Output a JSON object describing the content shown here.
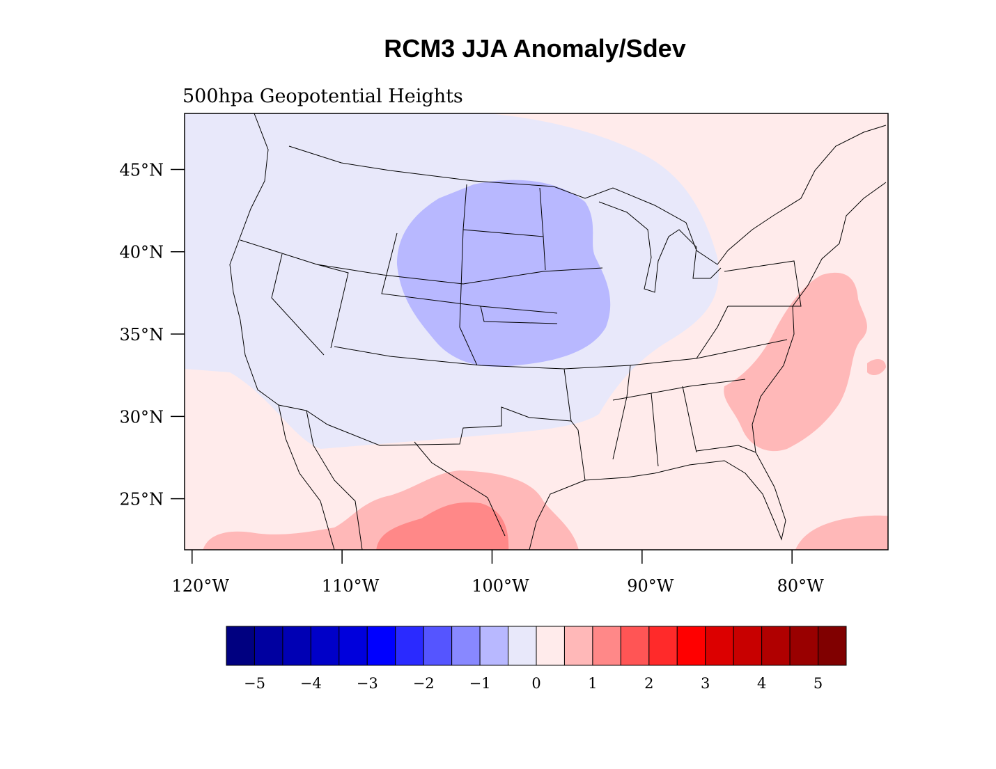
{
  "chart_data": {
    "type": "map",
    "title": "RCM3 JJA Anomaly/Sdev",
    "subtitle": "500hpa Geopotential Heights",
    "xlim": [
      -120.5,
      -73.6
    ],
    "ylim": [
      21.9,
      48.4
    ],
    "xticks": [
      {
        "value": -120,
        "label": "120°W"
      },
      {
        "value": -110,
        "label": "110°W"
      },
      {
        "value": -100,
        "label": "100°W"
      },
      {
        "value": -90,
        "label": "90°W"
      },
      {
        "value": -80,
        "label": "80°W"
      }
    ],
    "yticks": [
      {
        "value": 45,
        "label": "45°N"
      },
      {
        "value": 40,
        "label": "40°N"
      },
      {
        "value": 35,
        "label": "35°N"
      },
      {
        "value": 30,
        "label": "30°N"
      },
      {
        "value": 25,
        "label": "25°N"
      }
    ],
    "colorbar": {
      "lim": [
        -5.5,
        5.5
      ],
      "colors": [
        "#000080",
        "#0000a0",
        "#0000b4",
        "#0000c8",
        "#0000dc",
        "#0000ff",
        "#2a2aff",
        "#5555ff",
        "#8888ff",
        "#b8b8ff",
        "#e8e8fa",
        "#ffebeb",
        "#ffb8b8",
        "#ff8888",
        "#ff5555",
        "#ff2a2a",
        "#ff0000",
        "#dc0000",
        "#c80000",
        "#b00000",
        "#990000",
        "#800000"
      ],
      "ticks": [
        {
          "value": -5,
          "label": "−5"
        },
        {
          "value": -4,
          "label": "−4"
        },
        {
          "value": -3,
          "label": "−3"
        },
        {
          "value": -2,
          "label": "−2"
        },
        {
          "value": -1,
          "label": "−1"
        },
        0,
        1,
        2,
        3,
        4,
        5
      ]
    }
  }
}
